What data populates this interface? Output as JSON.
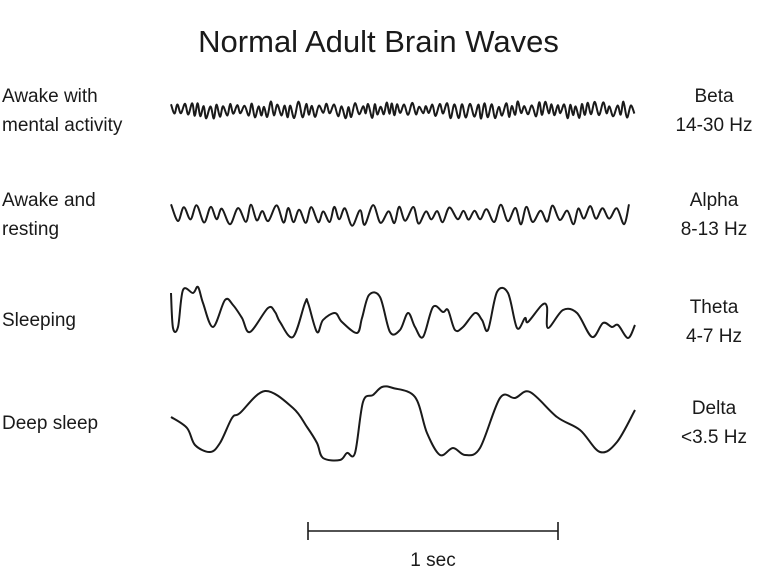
{
  "title": "Normal Adult Brain Waves",
  "waves": [
    {
      "state_line1": "Awake with",
      "state_line2": "mental activity",
      "name": "Beta",
      "range": "14-30 Hz"
    },
    {
      "state_line1": "Awake and",
      "state_line2": "resting",
      "name": "Alpha",
      "range": "8-13 Hz"
    },
    {
      "state_line1": "Sleeping",
      "state_line2": "",
      "name": "Theta",
      "range": "4-7 Hz"
    },
    {
      "state_line1": "Deep sleep",
      "state_line2": "",
      "name": "Delta",
      "range": "<3.5 Hz"
    }
  ],
  "scale_bar": {
    "label": "1 sec"
  },
  "line_color": "#1a1a1a"
}
